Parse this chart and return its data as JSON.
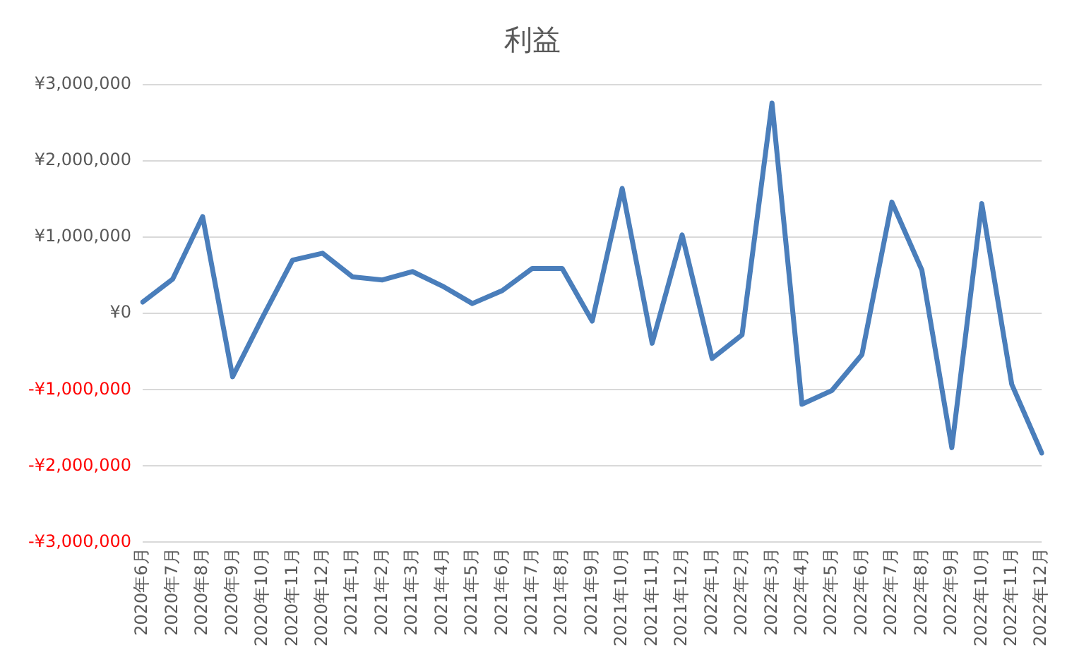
{
  "chart_data": {
    "type": "line",
    "title": "利益",
    "categories": [
      "2020年6月",
      "2020年7月",
      "2020年8月",
      "2020年9月",
      "2020年10月",
      "2020年11月",
      "2020年12月",
      "2021年1月",
      "2021年2月",
      "2021年3月",
      "2021年4月",
      "2021年5月",
      "2021年6月",
      "2021年7月",
      "2021年8月",
      "2021年9月",
      "2021年10月",
      "2021年11月",
      "2021年12月",
      "2022年1月",
      "2022年2月",
      "2022年3月",
      "2022年4月",
      "2022年5月",
      "2022年6月",
      "2022年7月",
      "2022年8月",
      "2022年9月",
      "2022年10月",
      "2022年11月",
      "2022年12月"
    ],
    "series": [
      {
        "color": "#4a7ebb",
        "values": [
          150000,
          450000,
          1270000,
          -830000,
          -50000,
          700000,
          790000,
          480000,
          440000,
          550000,
          360000,
          130000,
          300000,
          590000,
          590000,
          -100000,
          1640000,
          -390000,
          1030000,
          -590000,
          -280000,
          2760000,
          -1190000,
          -1010000,
          -540000,
          1460000,
          570000,
          -1760000,
          1440000,
          -930000,
          -1830000
        ]
      }
    ],
    "ylim": [
      -3000000,
      3000000
    ],
    "yticks": [
      {
        "value": -3000000,
        "label": "-¥3,000,000"
      },
      {
        "value": -2000000,
        "label": "-¥2,000,000"
      },
      {
        "value": -1000000,
        "label": "-¥1,000,000"
      },
      {
        "value": 0,
        "label": "¥0"
      },
      {
        "value": 1000000,
        "label": "¥1,000,000"
      },
      {
        "value": 2000000,
        "label": "¥2,000,000"
      },
      {
        "value": 3000000,
        "label": "¥3,000,000"
      }
    ],
    "grid": "y",
    "legend": false,
    "marker": "none",
    "line_style": "solid"
  }
}
